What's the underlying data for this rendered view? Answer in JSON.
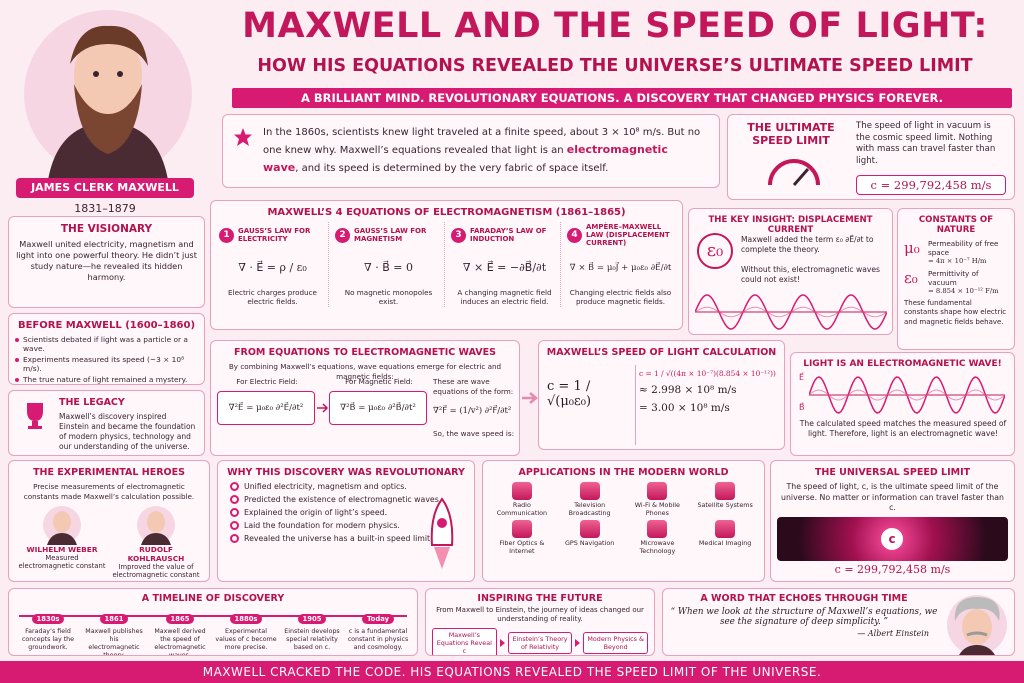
{
  "header": {
    "title": "MAXWELL AND THE SPEED OF LIGHT:",
    "subtitle": "HOW HIS EQUATIONS REVEALED THE UNIVERSE’S ULTIMATE SPEED LIMIT",
    "tagline": "A BRILLIANT MIND. REVOLUTIONARY EQUATIONS. A DISCOVERY THAT CHANGED PHYSICS FOREVER."
  },
  "portrait": {
    "name": "JAMES CLERK MAXWELL",
    "years": "1831–1879"
  },
  "intro": {
    "before": "In the 1860s, scientists knew light traveled at a finite speed, about 3 × 10⁸ m/s. But no one knew why. Maxwell’s equations revealed that light is an ",
    "highlight": "electromagnetic wave",
    "after": ", and its speed is determined by the very fabric of space itself."
  },
  "ultimate": {
    "title": "THE ULTIMATE SPEED LIMIT",
    "text": "The speed of light in vacuum is the cosmic speed limit. Nothing with mass can travel faster than light.",
    "value": "c = 299,792,458 m/s"
  },
  "visionary": {
    "title": "THE VISIONARY",
    "text": "Maxwell united electricity, magnetism and light into one powerful theory. He didn’t just study nature—he revealed its hidden harmony."
  },
  "before_maxwell": {
    "title": "BEFORE MAXWELL (1600–1860)",
    "bullets": [
      "Scientists debated if light was a particle or a wave.",
      "Experiments measured its speed (~3 × 10⁸ m/s).",
      "The true nature of light remained a mystery."
    ]
  },
  "legacy": {
    "title": "THE LEGACY",
    "text": "Maxwell’s discovery inspired Einstein and became the foundation of modern physics, technology and our understanding of the universe."
  },
  "equations": {
    "title": "MAXWELL’S 4 EQUATIONS OF ELECTROMAGNETISM (1861–1865)",
    "items": [
      {
        "number": "1",
        "name": "GAUSS’S LAW FOR ELECTRICITY",
        "equation": "∇ · E⃗ = ρ / ε₀",
        "description": "Electric charges produce electric fields."
      },
      {
        "number": "2",
        "name": "GAUSS’S LAW FOR MAGNETISM",
        "equation": "∇ · B⃗ = 0",
        "description": "No magnetic monopoles exist."
      },
      {
        "number": "3",
        "name": "FARADAY’S LAW OF INDUCTION",
        "equation": "∇ × E⃗ = −∂B⃗/∂t",
        "description": "A changing magnetic field induces an electric field."
      },
      {
        "number": "4",
        "name": "AMPÈRE–MAXWELL LAW (DISPLACEMENT CURRENT)",
        "equation": "∇ × B⃗ = μ₀J⃗ + μ₀ε₀ ∂E⃗/∂t",
        "description": "Changing electric fields also produce magnetic fields."
      }
    ]
  },
  "key_insight": {
    "title": "THE KEY INSIGHT: DISPLACEMENT CURRENT",
    "symbol": "ε₀",
    "text": "Maxwell added the term ε₀ ∂E⃗/∂t to complete the theory.",
    "note": "Without this, electromagnetic waves could not exist!"
  },
  "constants": {
    "title": "CONSTANTS OF NATURE",
    "items": [
      {
        "symbol": "μ₀",
        "name": "Permeability of free space",
        "value": "= 4π × 10⁻⁷ H/m"
      },
      {
        "symbol": "ε₀",
        "name": "Permittivity of vacuum",
        "value": "= 8.854 × 10⁻¹² F/m"
      }
    ],
    "note": "These fundamental constants shape how electric and magnetic fields behave."
  },
  "waves": {
    "title": "FROM EQUATIONS TO ELECTROMAGNETIC WAVES",
    "intro": "By combining Maxwell’s equations, wave equations emerge for electric and magnetic fields:",
    "electric_label": "For Electric Field:",
    "electric_equation": "∇²E⃗ = μ₀ε₀ ∂²E⃗/∂t²",
    "magnetic_label": "For Magnetic Field:",
    "magnetic_equation": "∇²B⃗ = μ₀ε₀ ∂²B⃗/∂t²",
    "form_label": "These are wave equations of the form:",
    "form_equation": "∇²F⃗ = (1/v²) ∂²F⃗/∂t²",
    "speed_label": "So, the wave speed is:"
  },
  "calculation": {
    "title": "MAXWELL’S SPEED OF LIGHT CALCULATION",
    "formula": "c = 1 / √(μ₀ε₀)",
    "steps": [
      "c = 1 / √((4π × 10⁻⁷)(8.854 × 10⁻¹²))",
      "≈ 2.998 × 10⁸ m/s",
      "= 3.00 × 10⁸ m/s"
    ]
  },
  "light_wave": {
    "title": "LIGHT IS AN ELECTROMAGNETIC WAVE!",
    "axis_labels": [
      "E⃗",
      "B⃗"
    ],
    "text": "The calculated speed matches the measured speed of light. Therefore, light is an electromagnetic wave!"
  },
  "heroes": {
    "title": "THE EXPERIMENTAL HEROES",
    "text": "Precise measurements of electromagnetic constants made Maxwell’s calculation possible.",
    "people": [
      {
        "name": "WILHELM WEBER",
        "description": "Measured electromagnetic constant"
      },
      {
        "name": "RUDOLF KOHLRAUSCH",
        "description": "Improved the value of electromagnetic constant"
      }
    ]
  },
  "revolutionary": {
    "title": "WHY THIS DISCOVERY WAS REVOLUTIONARY",
    "items": [
      "Unified electricity, magnetism and optics.",
      "Predicted the existence of electromagnetic waves.",
      "Explained the origin of light’s speed.",
      "Laid the foundation for modern physics.",
      "Revealed the universe has a built-in speed limit."
    ]
  },
  "applications": {
    "title": "APPLICATIONS IN THE MODERN WORLD",
    "items": [
      "Radio Communication",
      "Television Broadcasting",
      "Wi-Fi & Mobile Phones",
      "Satellite Systems",
      "Fiber Optics & Internet",
      "GPS Navigation",
      "Microwave Technology",
      "Medical Imaging"
    ]
  },
  "universal": {
    "title": "THE UNIVERSAL SPEED LIMIT",
    "text": "The speed of light, c, is the ultimate speed limit of the universe. No matter or information can travel faster than c.",
    "badge": "c",
    "value": "c = 299,792,458 m/s"
  },
  "timeline": {
    "title": "A TIMELINE OF DISCOVERY",
    "events": [
      {
        "year": "1830s",
        "text": "Faraday’s field concepts lay the groundwork."
      },
      {
        "year": "1861",
        "text": "Maxwell publishes his electromagnetic theory."
      },
      {
        "year": "1865",
        "text": "Maxwell derived the speed of electromagnetic waves."
      },
      {
        "year": "1880s",
        "text": "Experimental values of c become more precise."
      },
      {
        "year": "1905",
        "text": "Einstein develops special relativity based on c."
      },
      {
        "year": "Today",
        "text": "c is a fundamental constant in physics and cosmology."
      }
    ]
  },
  "inspiring": {
    "title": "INSPIRING THE FUTURE",
    "text": "From Maxwell to Einstein, the journey of ideas changed our understanding of reality.",
    "steps": [
      "Maxwell’s Equations Reveal c",
      "Einstein’s Theory of Relativity",
      "Modern Physics & Beyond"
    ]
  },
  "quote": {
    "title": "A WORD THAT ECHOES THROUGH TIME",
    "text": "“ When we look at the structure of Maxwell’s equations, we see the signature of deep simplicity. ”",
    "attribution": "— Albert Einstein"
  },
  "footer": {
    "text": "MAXWELL CRACKED THE CODE. HIS EQUATIONS REVEALED THE SPEED LIMIT OF THE UNIVERSE."
  }
}
